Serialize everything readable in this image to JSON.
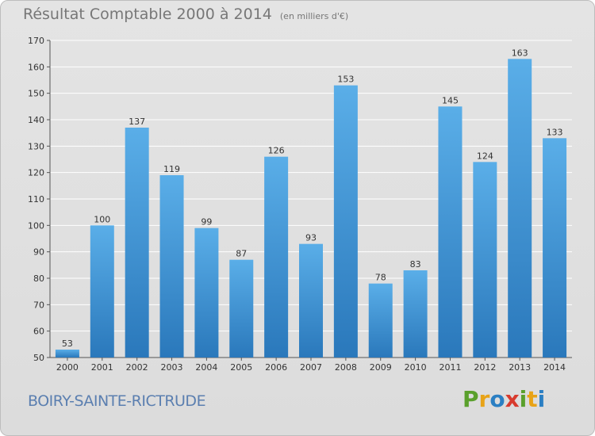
{
  "header": {
    "title": "Résultat Comptable 2000 à 2014",
    "unit": "(en milliers d'€)"
  },
  "footer": {
    "commune": "BOIRY-SAINTE-RICTRUDE"
  },
  "logo": {
    "letters": [
      {
        "char": "P",
        "color": "#5aa02c"
      },
      {
        "char": "r",
        "color": "#e8a317"
      },
      {
        "char": "o",
        "color": "#2b7fc3"
      },
      {
        "char": "x",
        "color": "#d83b2e"
      },
      {
        "char": "i",
        "color": "#5aa02c"
      },
      {
        "char": "t",
        "color": "#e8a317"
      },
      {
        "char": "i",
        "color": "#2b7fc3"
      }
    ]
  },
  "colors": {
    "bar_top": "#5aaee8",
    "bar_bottom": "#2a78bb",
    "grid": "#ffffff"
  },
  "chart_data": {
    "type": "bar",
    "title": "Résultat Comptable 2000 à 2014",
    "xlabel": "",
    "ylabel": "",
    "grid": true,
    "categories": [
      "2000",
      "2001",
      "2002",
      "2003",
      "2004",
      "2005",
      "2006",
      "2007",
      "2008",
      "2009",
      "2010",
      "2011",
      "2012",
      "2013",
      "2014"
    ],
    "values": [
      53,
      100,
      137,
      119,
      99,
      87,
      126,
      93,
      153,
      78,
      83,
      145,
      124,
      163,
      133
    ],
    "ylim": [
      50,
      170
    ],
    "yticks": [
      50,
      60,
      70,
      80,
      90,
      100,
      110,
      120,
      130,
      140,
      150,
      160,
      170
    ]
  }
}
